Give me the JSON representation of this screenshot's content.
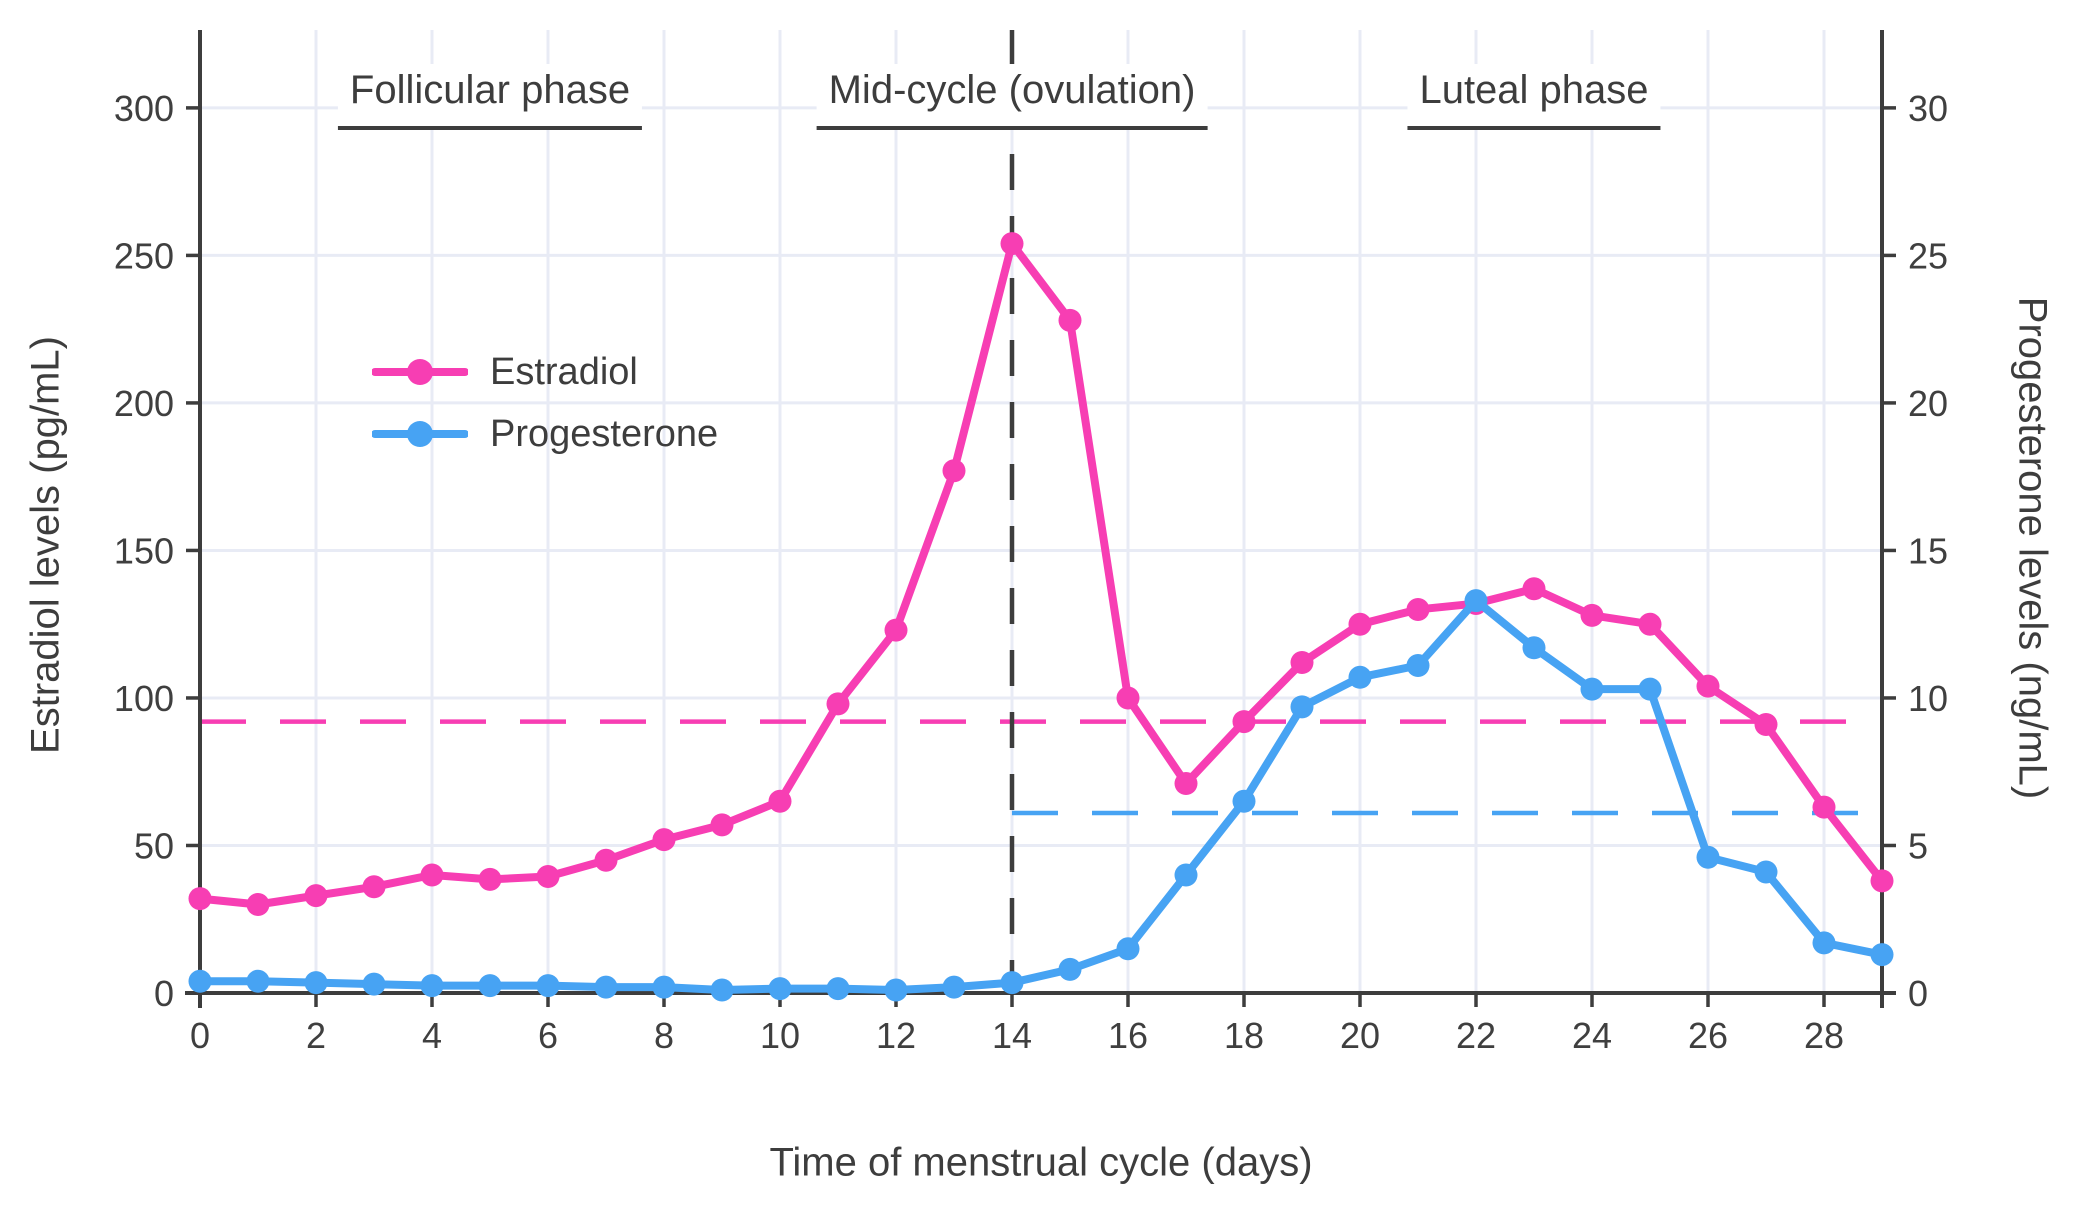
{
  "chart_data": {
    "type": "line",
    "title": "",
    "xlabel": "Time of menstrual cycle (days)",
    "ylabel_left": "Estradiol levels (pg/mL)",
    "ylabel_right": "Progesterone levels (ng/mL)",
    "x": [
      0,
      1,
      2,
      3,
      4,
      5,
      6,
      7,
      8,
      9,
      10,
      11,
      12,
      13,
      14,
      15,
      16,
      17,
      18,
      19,
      20,
      21,
      22,
      23,
      24,
      25,
      26,
      27,
      28,
      29
    ],
    "x_ticks": [
      0,
      2,
      4,
      6,
      8,
      10,
      12,
      14,
      16,
      18,
      20,
      22,
      24,
      26,
      28
    ],
    "xlim": [
      0,
      29
    ],
    "ylim_left": [
      0,
      326.4
    ],
    "ylim_right": [
      0,
      32.64
    ],
    "y_ticks_left": [
      0,
      50,
      100,
      150,
      200,
      250,
      300
    ],
    "y_ticks_right": [
      0,
      5,
      10,
      15,
      20,
      25,
      30
    ],
    "grid": true,
    "legend_position": "upper-left-inside",
    "series": [
      {
        "name": "Estradiol",
        "axis": "left",
        "color": "#f73eb3",
        "values": [
          32,
          30,
          33,
          36,
          40,
          38.5,
          39.5,
          45,
          52,
          57,
          65,
          98,
          123,
          177,
          254,
          228,
          100,
          71,
          92,
          112,
          125,
          130,
          132,
          137,
          128,
          125,
          104,
          91,
          63,
          38
        ]
      },
      {
        "name": "Progesterone",
        "axis": "right",
        "color": "#47a3f3",
        "values": [
          0.4,
          0.4,
          0.35,
          0.3,
          0.25,
          0.25,
          0.25,
          0.2,
          0.2,
          0.1,
          0.15,
          0.15,
          0.1,
          0.2,
          0.35,
          0.8,
          1.5,
          4.0,
          6.5,
          9.7,
          10.7,
          11.1,
          13.3,
          11.7,
          10.3,
          10.3,
          4.6,
          4.1,
          1.7,
          1.3
        ]
      }
    ],
    "reference_lines": [
      {
        "id": "estradiol-mean",
        "orientation": "horizontal",
        "axis": "left",
        "value": 92,
        "color": "#f73eb3",
        "style": "dashed",
        "x_start": 0,
        "x_end": 29
      },
      {
        "id": "progesterone-mean",
        "orientation": "horizontal",
        "axis": "right",
        "value": 6.1,
        "color": "#47a3f3",
        "style": "dashed",
        "x_start": 14,
        "x_end": 29
      },
      {
        "id": "ovulation-day",
        "orientation": "vertical",
        "value": 14,
        "color": "#3d3d3d",
        "style": "dashed"
      }
    ],
    "annotations": [
      {
        "label": "Follicular phase",
        "x_center": 5
      },
      {
        "label": "Mid-cycle (ovulation)",
        "x_center": 14
      },
      {
        "label": "Luteal phase",
        "x_center": 23
      }
    ],
    "colors": {
      "axis": "#3d3d3d",
      "tick_text": "#3f3f3f",
      "grid": "#e8ebf5",
      "background": "#ffffff"
    }
  }
}
